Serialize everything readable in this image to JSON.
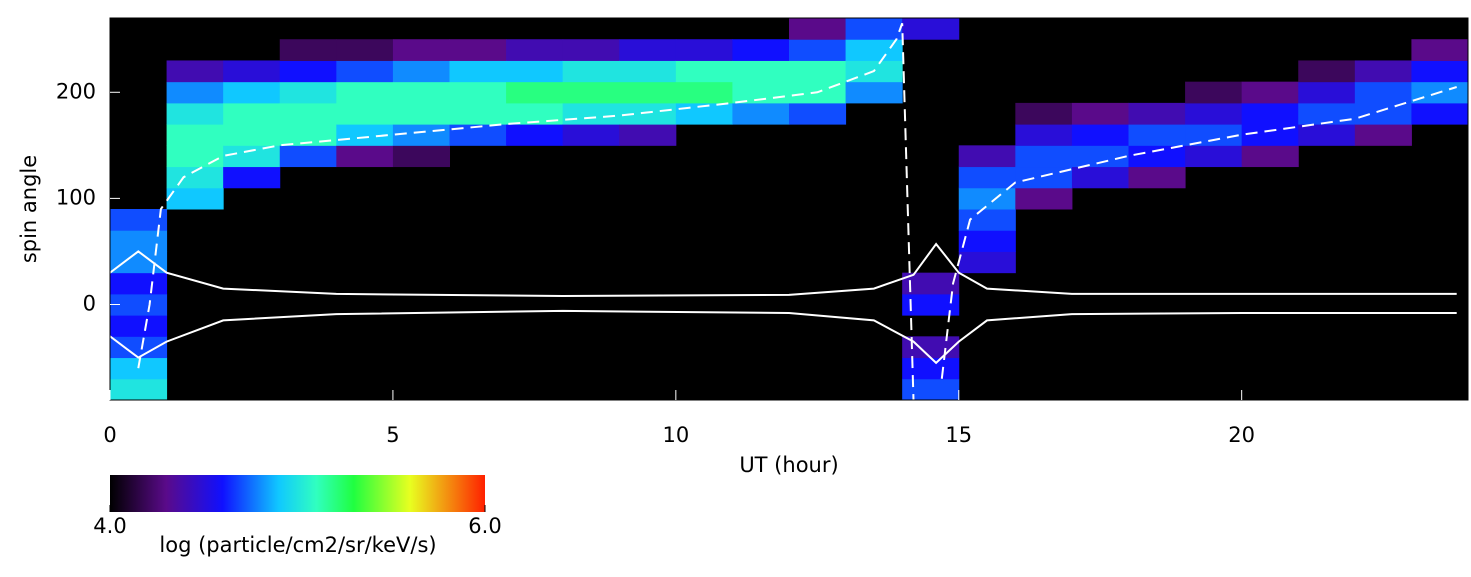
{
  "chart_data": {
    "type": "heatmap",
    "xlabel": "UT (hour)",
    "ylabel": "spin angle",
    "xlim": [
      0,
      24
    ],
    "ylim": [
      -90,
      270
    ],
    "xticks": [
      0,
      5,
      10,
      15,
      20
    ],
    "yticks": [
      0,
      100,
      200
    ],
    "x_bins": [
      0,
      1,
      2,
      3,
      4,
      5,
      6,
      7,
      8,
      9,
      10,
      11,
      12,
      13,
      14,
      15,
      16,
      17,
      18,
      19,
      20,
      21,
      22,
      23,
      24
    ],
    "y_bins": [
      -90,
      -70,
      -50,
      -30,
      -10,
      10,
      30,
      50,
      70,
      90,
      110,
      130,
      150,
      170,
      190,
      210,
      230,
      250,
      270
    ],
    "z": [
      [
        5.0,
        4.9,
        4.7,
        4.6,
        4.7,
        4.6,
        4.8,
        4.8,
        4.7,
        null,
        null,
        null,
        null,
        null,
        null,
        null,
        null,
        null
      ],
      [
        null,
        null,
        null,
        null,
        null,
        null,
        null,
        null,
        null,
        4.9,
        5.0,
        5.1,
        5.1,
        5.0,
        4.8,
        4.4,
        null,
        null
      ],
      [
        null,
        null,
        null,
        null,
        null,
        null,
        null,
        null,
        null,
        null,
        4.6,
        5.0,
        5.1,
        5.1,
        4.9,
        4.5,
        null,
        null
      ],
      [
        null,
        null,
        null,
        null,
        null,
        null,
        null,
        null,
        null,
        null,
        null,
        4.7,
        5.1,
        5.1,
        5.0,
        4.6,
        4.2,
        null
      ],
      [
        null,
        null,
        null,
        null,
        null,
        null,
        null,
        null,
        null,
        null,
        null,
        4.3,
        4.9,
        5.1,
        5.1,
        4.7,
        4.2,
        null
      ],
      [
        null,
        null,
        null,
        null,
        null,
        null,
        null,
        null,
        null,
        null,
        null,
        4.2,
        4.8,
        5.1,
        5.1,
        4.8,
        4.3,
        null
      ],
      [
        null,
        null,
        null,
        null,
        null,
        null,
        null,
        null,
        null,
        null,
        null,
        null,
        4.7,
        5.1,
        5.1,
        4.9,
        4.3,
        null
      ],
      [
        null,
        null,
        null,
        null,
        null,
        null,
        null,
        null,
        null,
        null,
        null,
        null,
        4.6,
        5.1,
        5.2,
        4.9,
        4.4,
        null
      ],
      [
        null,
        null,
        null,
        null,
        null,
        null,
        null,
        null,
        null,
        null,
        null,
        null,
        4.5,
        5.0,
        5.2,
        5.0,
        4.4,
        null
      ],
      [
        null,
        null,
        null,
        null,
        null,
        null,
        null,
        null,
        null,
        null,
        null,
        null,
        4.4,
        5.0,
        5.2,
        5.0,
        4.5,
        null
      ],
      [
        null,
        null,
        null,
        null,
        null,
        null,
        null,
        null,
        null,
        null,
        null,
        null,
        null,
        4.9,
        5.2,
        5.1,
        4.5,
        null
      ],
      [
        null,
        null,
        null,
        null,
        null,
        null,
        null,
        null,
        null,
        null,
        null,
        null,
        null,
        4.8,
        5.1,
        5.1,
        4.6,
        null
      ],
      [
        null,
        null,
        null,
        null,
        null,
        null,
        null,
        null,
        null,
        null,
        null,
        null,
        null,
        4.7,
        5.1,
        5.1,
        4.7,
        4.3
      ],
      [
        null,
        null,
        null,
        null,
        null,
        null,
        null,
        null,
        null,
        null,
        null,
        null,
        null,
        null,
        4.8,
        5.0,
        4.9,
        4.7
      ],
      [
        4.7,
        4.6,
        4.4,
        null,
        4.6,
        4.4,
        null,
        null,
        null,
        null,
        null,
        null,
        null,
        null,
        null,
        null,
        null,
        4.5
      ],
      [
        null,
        null,
        null,
        null,
        null,
        null,
        4.5,
        4.6,
        4.7,
        4.8,
        4.7,
        4.4,
        null,
        null,
        null,
        null,
        null,
        null
      ],
      [
        null,
        null,
        null,
        null,
        null,
        null,
        null,
        null,
        null,
        4.3,
        4.7,
        4.7,
        4.5,
        4.2,
        null,
        null,
        null,
        null
      ],
      [
        null,
        null,
        null,
        null,
        null,
        null,
        null,
        null,
        null,
        null,
        4.5,
        4.7,
        4.6,
        4.3,
        null,
        null,
        null,
        null
      ],
      [
        null,
        null,
        null,
        null,
        null,
        null,
        null,
        null,
        null,
        null,
        4.3,
        4.6,
        4.7,
        4.4,
        null,
        null,
        null,
        null
      ],
      [
        null,
        null,
        null,
        null,
        null,
        null,
        null,
        null,
        null,
        null,
        null,
        4.5,
        4.7,
        4.5,
        4.2,
        null,
        null,
        null
      ],
      [
        null,
        null,
        null,
        null,
        null,
        null,
        null,
        null,
        null,
        null,
        null,
        4.3,
        4.6,
        4.6,
        4.3,
        null,
        null,
        null
      ],
      [
        null,
        null,
        null,
        null,
        null,
        null,
        null,
        null,
        null,
        null,
        null,
        null,
        4.5,
        4.7,
        4.5,
        4.2,
        null,
        null
      ],
      [
        null,
        null,
        null,
        null,
        null,
        null,
        null,
        null,
        null,
        null,
        null,
        null,
        4.3,
        4.7,
        4.7,
        4.4,
        null,
        null
      ],
      [
        null,
        null,
        null,
        null,
        null,
        null,
        null,
        null,
        null,
        null,
        null,
        null,
        null,
        4.6,
        4.8,
        4.6,
        4.3,
        null
      ]
    ],
    "clim": [
      4,
      6
    ],
    "cticks": [
      {
        "value": 4,
        "label": "4.0"
      },
      {
        "value": 6,
        "label": "6.0"
      }
    ],
    "clabel": "log (particle/cm2/sr/keV/s)",
    "lines": [
      {
        "style": "dashed",
        "color": "#ffffff",
        "x": [
          0.5,
          0.7,
          0.9,
          1.3,
          2,
          3,
          5,
          7,
          9,
          11,
          12.5,
          13.5,
          13.9,
          14.0,
          14.2,
          14.45,
          14.7,
          14.9,
          15.2,
          16,
          18,
          20,
          22,
          23.8
        ],
        "values": [
          -60,
          0,
          90,
          120,
          140,
          150,
          160,
          170,
          178,
          190,
          200,
          220,
          250,
          265,
          -90,
          null,
          -70,
          20,
          80,
          115,
          140,
          160,
          175,
          205
        ]
      },
      {
        "style": "solid",
        "color": "#ffffff",
        "x": [
          0,
          0.5,
          1,
          2,
          4,
          8,
          12,
          13.5,
          14.2,
          14.6,
          15,
          15.5,
          17,
          20,
          23.8
        ],
        "values": [
          30,
          50,
          30,
          15,
          10,
          8,
          9,
          15,
          28,
          57,
          30,
          15,
          10,
          10,
          10
        ]
      },
      {
        "style": "solid",
        "color": "#ffffff",
        "x": [
          0,
          0.5,
          1,
          2,
          4,
          8,
          12,
          13.5,
          14.2,
          14.6,
          15,
          15.5,
          17,
          20,
          23.8
        ],
        "values": [
          -30,
          -50,
          -35,
          -15,
          -9,
          -6,
          -8,
          -15,
          -35,
          -55,
          -35,
          -15,
          -9,
          -8,
          -8
        ]
      }
    ]
  }
}
